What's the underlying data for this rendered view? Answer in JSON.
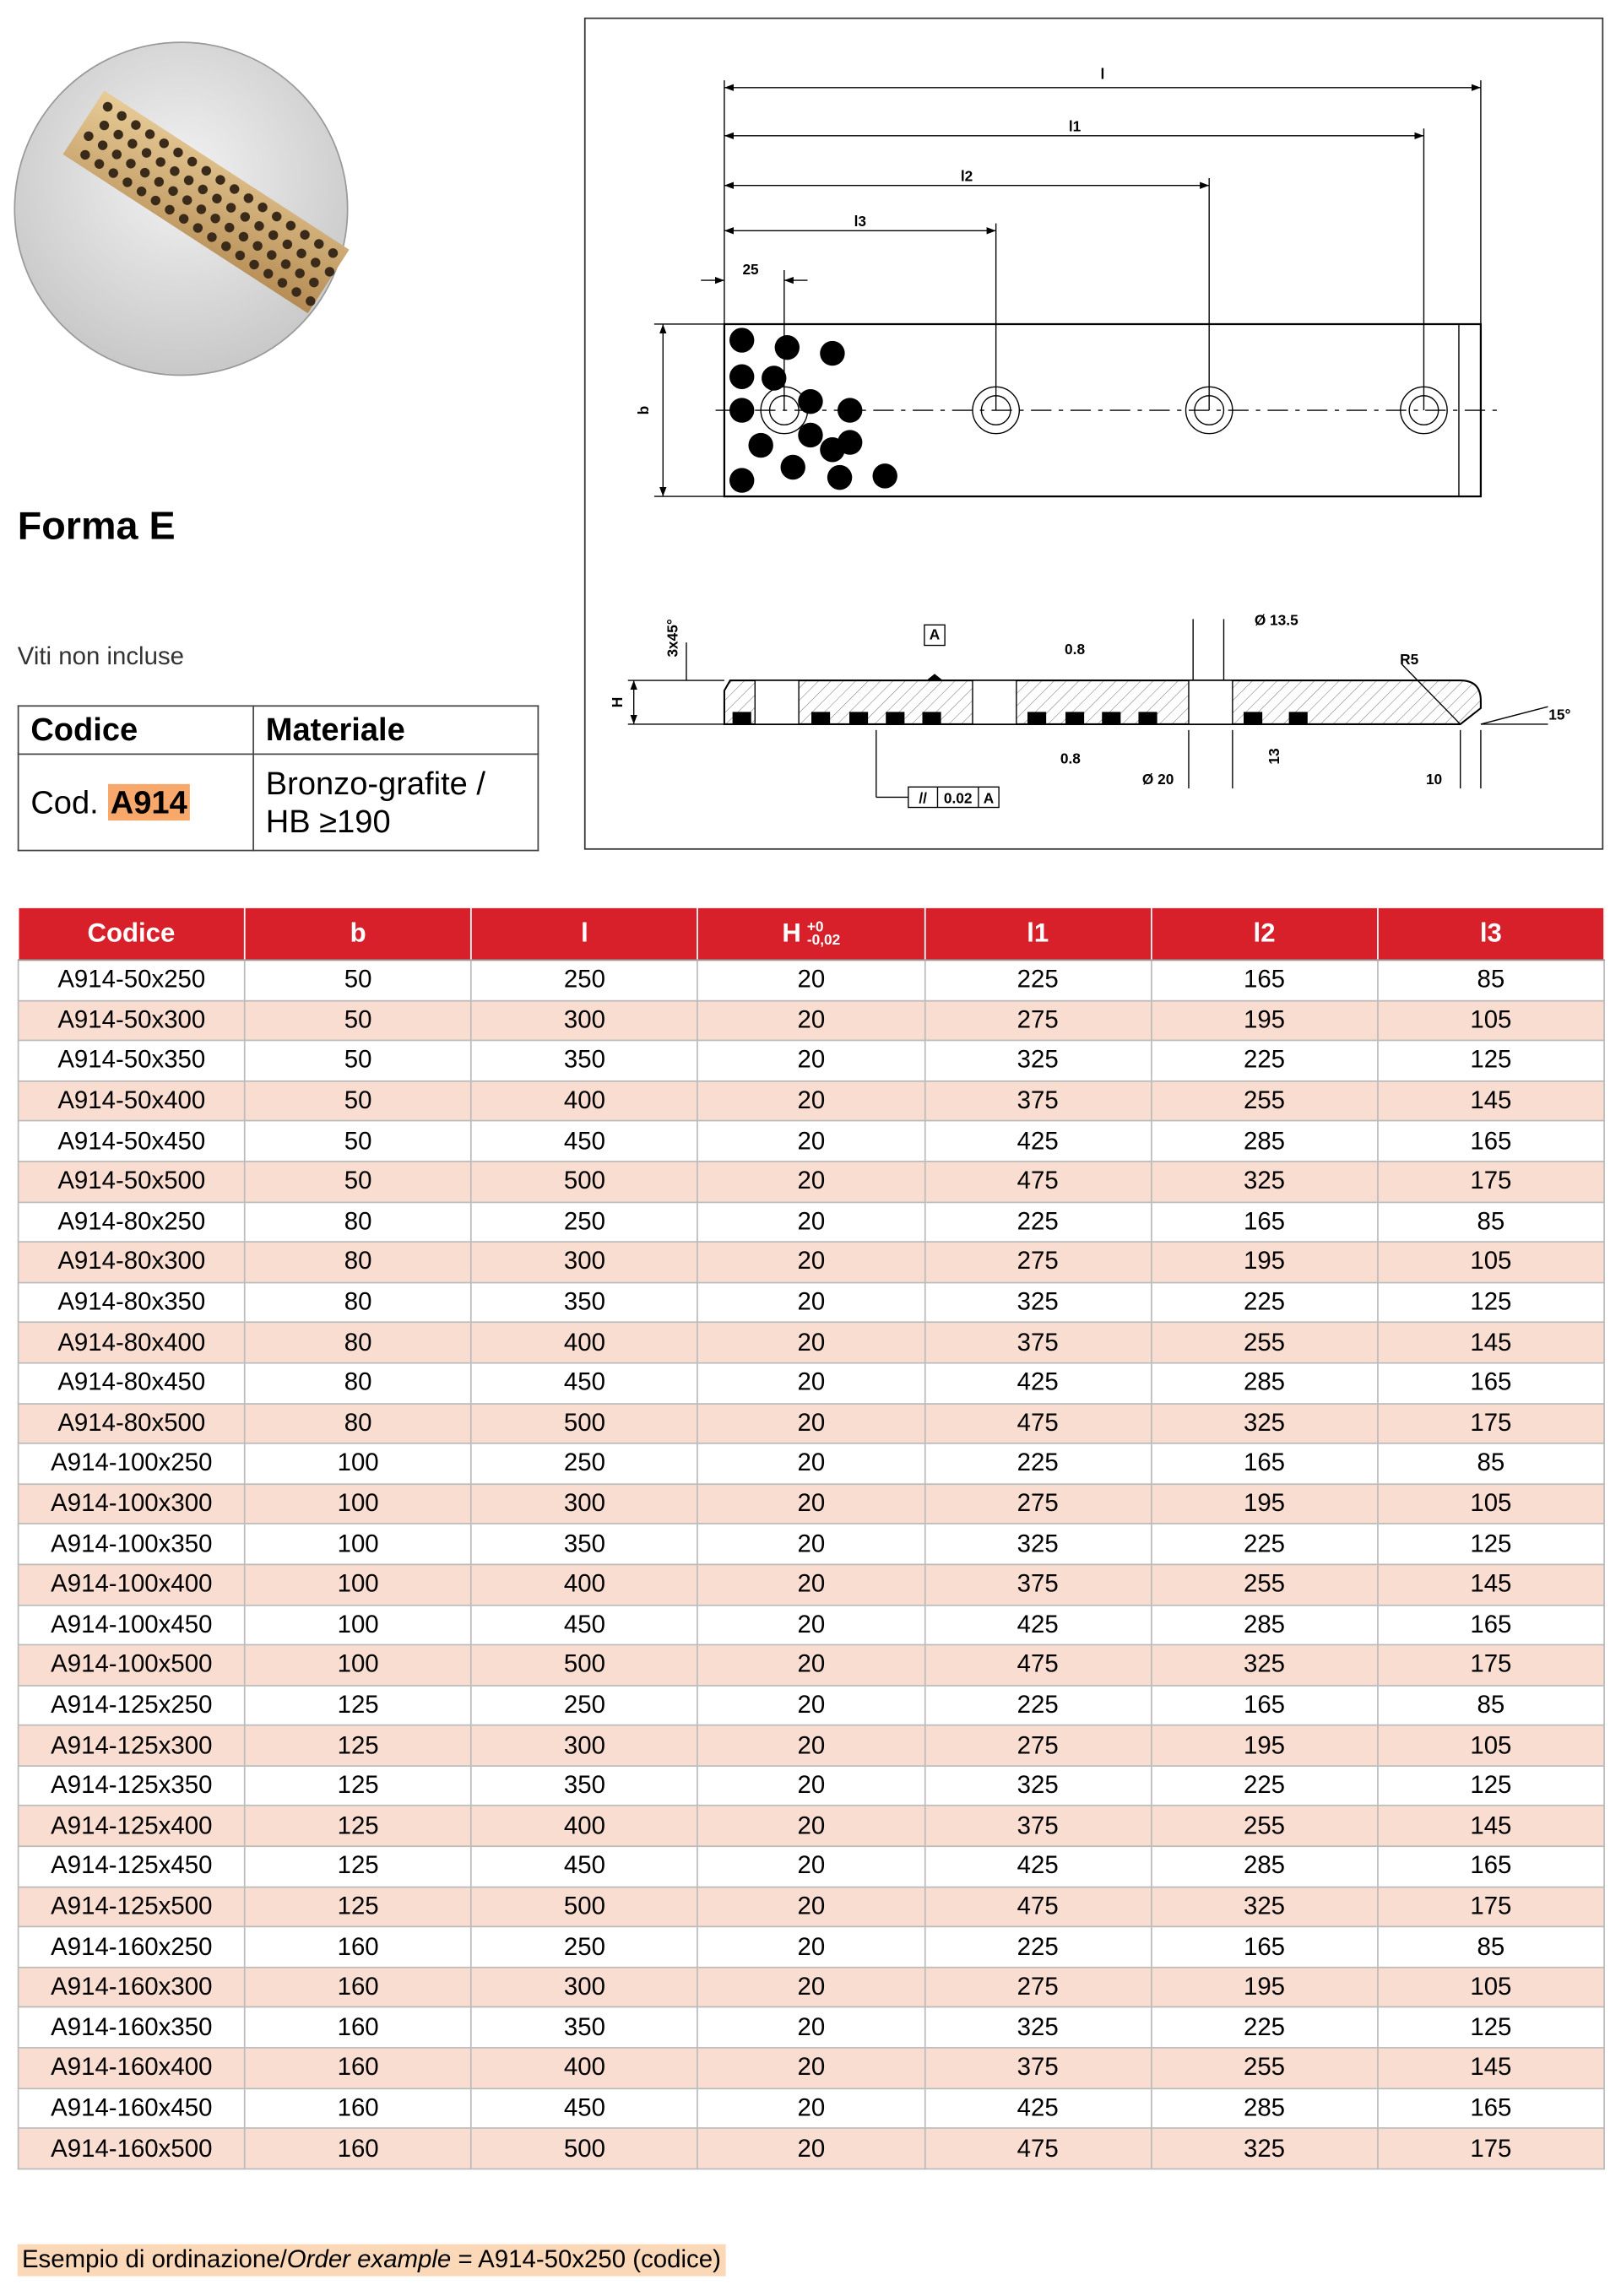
{
  "left": {
    "title": "Forma E",
    "note": "Viti non incluse",
    "spec": {
      "headers": [
        "Codice",
        "Materiale"
      ],
      "code_prefix": "Cod.",
      "code": "A914",
      "material": [
        "Bronzo-grafite /",
        "HB ≥190"
      ]
    }
  },
  "drawing": {
    "labels": {
      "l": "l",
      "l1": "l1",
      "l2": "l2",
      "l3": "l3",
      "d25": "25",
      "b": "b",
      "chamfer": "3x45°",
      "datum": "A",
      "rough1": "0.8",
      "hole": "Ø 13.5",
      "radius": "R5",
      "H": "H",
      "angle": "15°",
      "rough2": "0.8",
      "depth": "13",
      "cbore": "Ø 20",
      "d10": "10",
      "par_sym": "//",
      "par_val": "0.02",
      "par_ref": "A"
    }
  },
  "table": {
    "headers": [
      "Codice",
      "b",
      "l",
      "H",
      "l1",
      "l2",
      "l3"
    ],
    "h_tol": [
      "+0",
      "-0,02"
    ],
    "rows": [
      [
        "A914-50x250",
        "50",
        "250",
        "20",
        "225",
        "165",
        "85"
      ],
      [
        "A914-50x300",
        "50",
        "300",
        "20",
        "275",
        "195",
        "105"
      ],
      [
        "A914-50x350",
        "50",
        "350",
        "20",
        "325",
        "225",
        "125"
      ],
      [
        "A914-50x400",
        "50",
        "400",
        "20",
        "375",
        "255",
        "145"
      ],
      [
        "A914-50x450",
        "50",
        "450",
        "20",
        "425",
        "285",
        "165"
      ],
      [
        "A914-50x500",
        "50",
        "500",
        "20",
        "475",
        "325",
        "175"
      ],
      [
        "A914-80x250",
        "80",
        "250",
        "20",
        "225",
        "165",
        "85"
      ],
      [
        "A914-80x300",
        "80",
        "300",
        "20",
        "275",
        "195",
        "105"
      ],
      [
        "A914-80x350",
        "80",
        "350",
        "20",
        "325",
        "225",
        "125"
      ],
      [
        "A914-80x400",
        "80",
        "400",
        "20",
        "375",
        "255",
        "145"
      ],
      [
        "A914-80x450",
        "80",
        "450",
        "20",
        "425",
        "285",
        "165"
      ],
      [
        "A914-80x500",
        "80",
        "500",
        "20",
        "475",
        "325",
        "175"
      ],
      [
        "A914-100x250",
        "100",
        "250",
        "20",
        "225",
        "165",
        "85"
      ],
      [
        "A914-100x300",
        "100",
        "300",
        "20",
        "275",
        "195",
        "105"
      ],
      [
        "A914-100x350",
        "100",
        "350",
        "20",
        "325",
        "225",
        "125"
      ],
      [
        "A914-100x400",
        "100",
        "400",
        "20",
        "375",
        "255",
        "145"
      ],
      [
        "A914-100x450",
        "100",
        "450",
        "20",
        "425",
        "285",
        "165"
      ],
      [
        "A914-100x500",
        "100",
        "500",
        "20",
        "475",
        "325",
        "175"
      ],
      [
        "A914-125x250",
        "125",
        "250",
        "20",
        "225",
        "165",
        "85"
      ],
      [
        "A914-125x300",
        "125",
        "300",
        "20",
        "275",
        "195",
        "105"
      ],
      [
        "A914-125x350",
        "125",
        "350",
        "20",
        "325",
        "225",
        "125"
      ],
      [
        "A914-125x400",
        "125",
        "400",
        "20",
        "375",
        "255",
        "145"
      ],
      [
        "A914-125x450",
        "125",
        "450",
        "20",
        "425",
        "285",
        "165"
      ],
      [
        "A914-125x500",
        "125",
        "500",
        "20",
        "475",
        "325",
        "175"
      ],
      [
        "A914-160x250",
        "160",
        "250",
        "20",
        "225",
        "165",
        "85"
      ],
      [
        "A914-160x300",
        "160",
        "300",
        "20",
        "275",
        "195",
        "105"
      ],
      [
        "A914-160x350",
        "160",
        "350",
        "20",
        "325",
        "225",
        "125"
      ],
      [
        "A914-160x400",
        "160",
        "400",
        "20",
        "375",
        "255",
        "145"
      ],
      [
        "A914-160x450",
        "160",
        "450",
        "20",
        "425",
        "285",
        "165"
      ],
      [
        "A914-160x500",
        "160",
        "500",
        "20",
        "475",
        "325",
        "175"
      ]
    ]
  },
  "footer": {
    "it": "Esempio di ordinazione/",
    "en": "Order example",
    "rest": " = A914-50x250 (codice)"
  }
}
